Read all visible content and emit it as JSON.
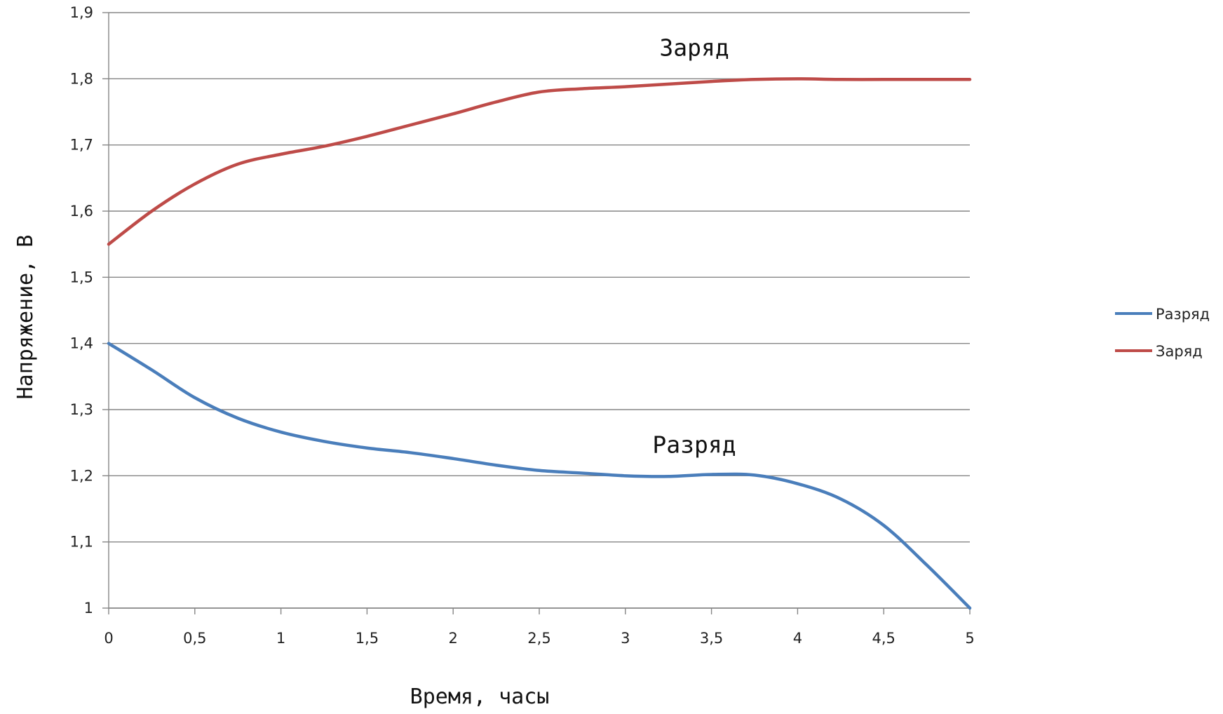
{
  "chart_data": {
    "type": "line",
    "xlabel": "Время, часы",
    "ylabel": "Напряжение, В",
    "xlim": [
      0,
      5
    ],
    "ylim": [
      1,
      1.9
    ],
    "x_ticks": [
      0,
      0.5,
      1,
      1.5,
      2,
      2.5,
      3,
      3.5,
      4,
      4.5,
      5
    ],
    "x_tick_labels": [
      "0",
      "0,5",
      "1",
      "1,5",
      "2",
      "2,5",
      "3",
      "3,5",
      "4",
      "4,5",
      "5"
    ],
    "y_ticks": [
      1,
      1.1,
      1.2,
      1.3,
      1.4,
      1.5,
      1.6,
      1.7,
      1.8,
      1.9
    ],
    "y_tick_labels": [
      "1",
      "1,1",
      "1,2",
      "1,3",
      "1,4",
      "1,5",
      "1,6",
      "1,7",
      "1,8",
      "1,9"
    ],
    "grid": "horizontal",
    "legend_position": "right",
    "series": [
      {
        "name": "Разряд",
        "color": "#4a7ebb",
        "x": [
          0,
          0.25,
          0.5,
          0.75,
          1,
          1.25,
          1.5,
          1.75,
          2,
          2.25,
          2.5,
          2.75,
          3,
          3.25,
          3.5,
          3.75,
          4,
          4.25,
          4.5,
          4.75,
          5
        ],
        "y": [
          1.4,
          1.36,
          1.318,
          1.287,
          1.266,
          1.252,
          1.242,
          1.235,
          1.226,
          1.216,
          1.208,
          1.204,
          1.2,
          1.199,
          1.202,
          1.201,
          1.188,
          1.165,
          1.125,
          1.065,
          1.0
        ]
      },
      {
        "name": "Заряд",
        "color": "#be4b48",
        "x": [
          0,
          0.25,
          0.5,
          0.75,
          1,
          1.25,
          1.5,
          1.75,
          2,
          2.25,
          2.5,
          2.75,
          3,
          3.25,
          3.5,
          3.75,
          4,
          4.25,
          4.5,
          4.75,
          5
        ],
        "y": [
          1.55,
          1.6,
          1.641,
          1.671,
          1.686,
          1.698,
          1.713,
          1.73,
          1.747,
          1.765,
          1.78,
          1.785,
          1.788,
          1.792,
          1.796,
          1.799,
          1.8,
          1.799,
          1.799,
          1.799,
          1.799
        ]
      }
    ],
    "annotations": [
      {
        "text": "Заряд",
        "x": 3.4,
        "y": 1.835
      },
      {
        "text": "Разряд",
        "x": 3.4,
        "y": 1.235
      }
    ]
  }
}
